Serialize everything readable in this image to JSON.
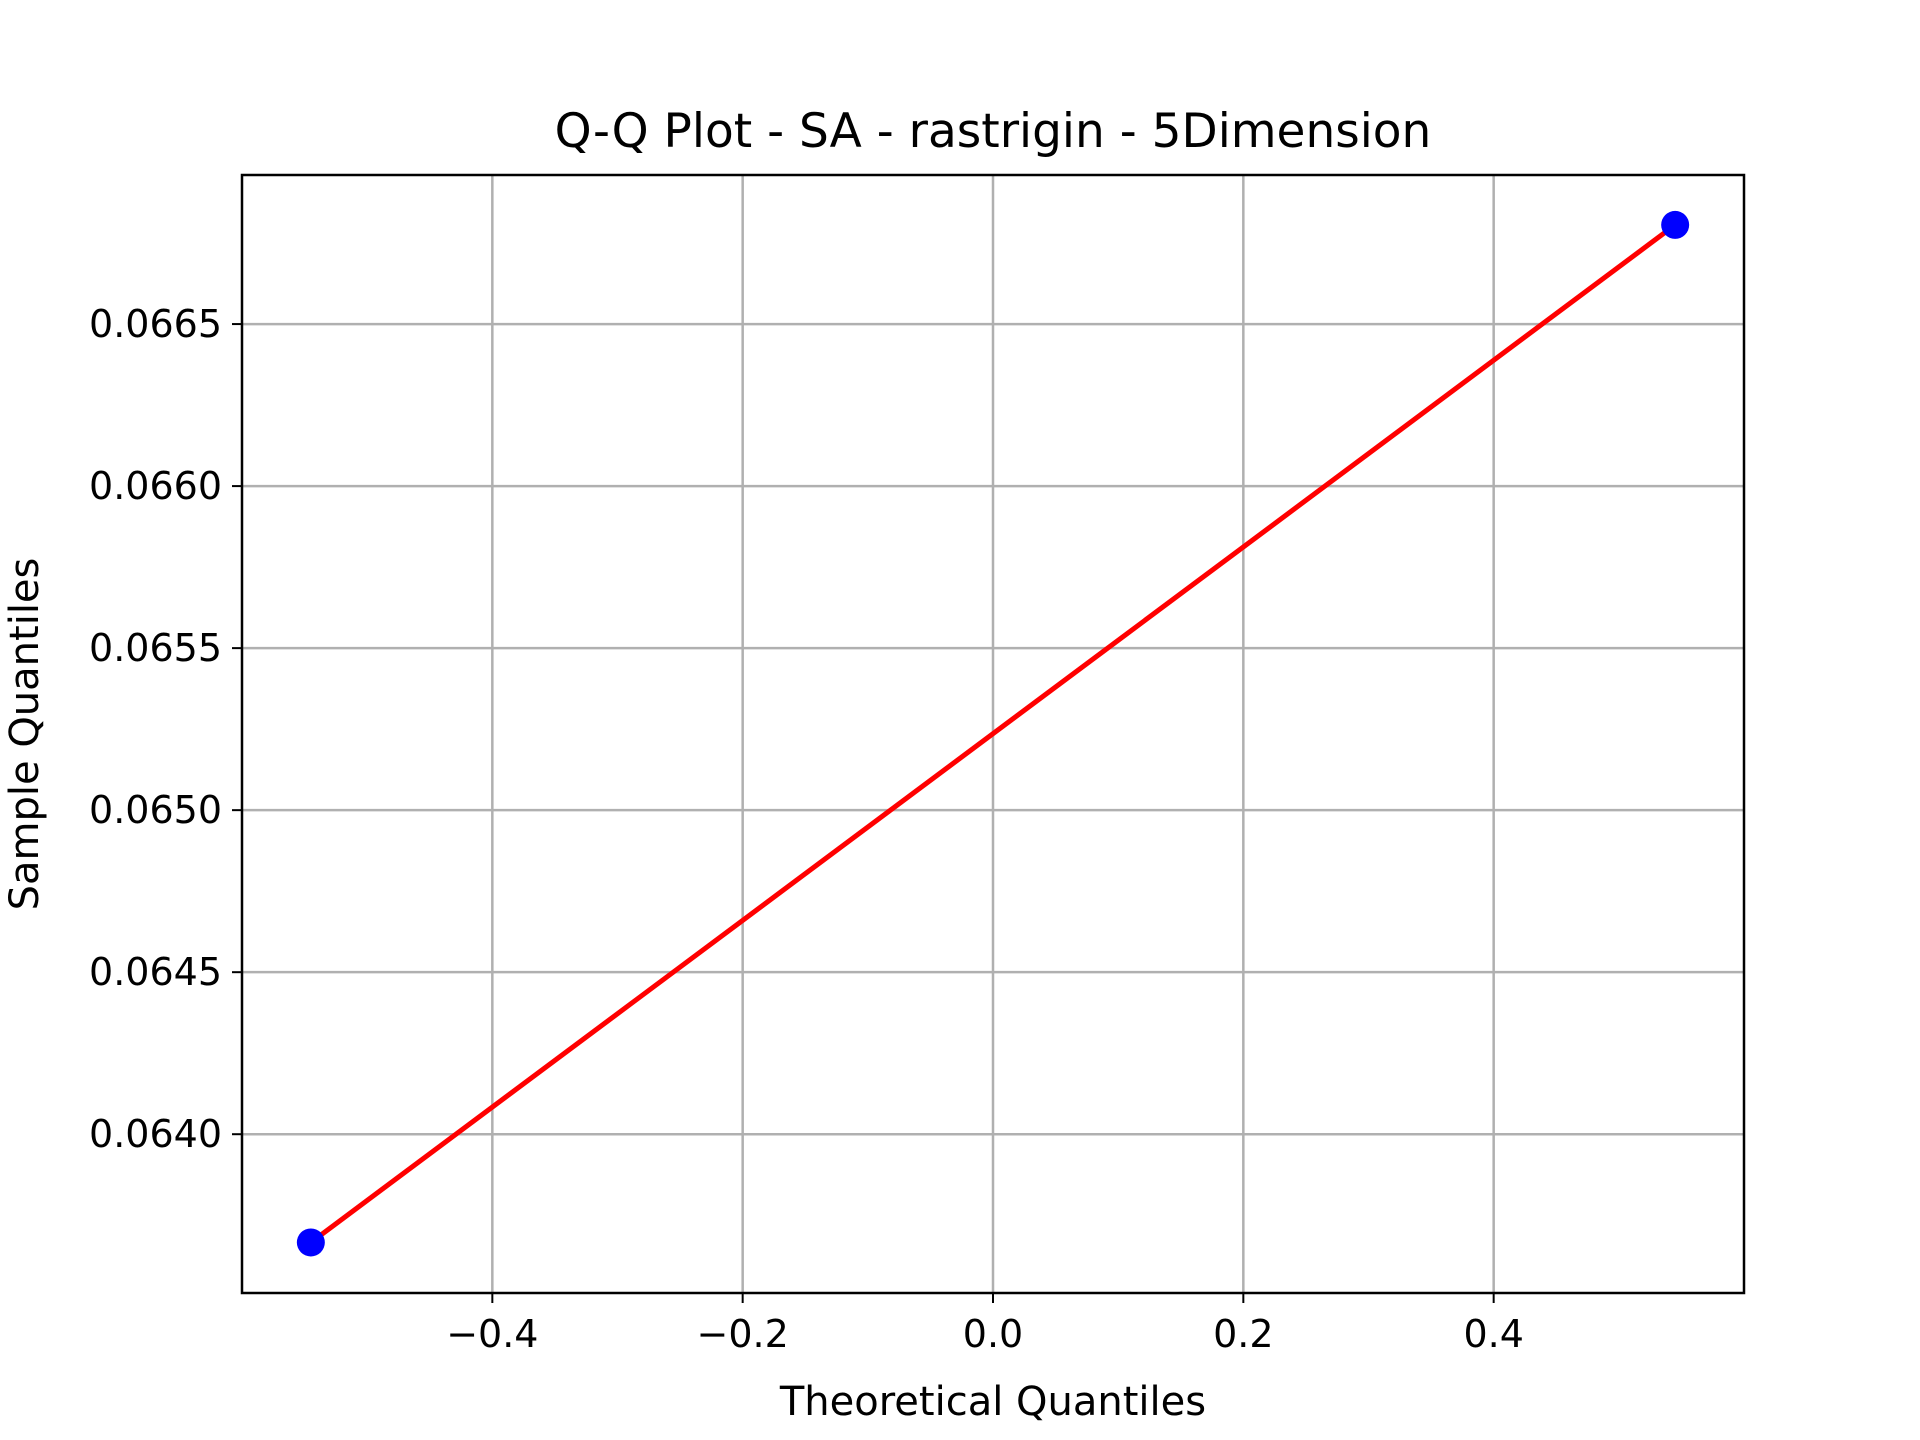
{
  "chart_data": {
    "type": "scatter",
    "title": "Q-Q Plot - SA - rastrigin - 5Dimension",
    "xlabel": "Theoretical Quantiles",
    "ylabel": "Sample Quantiles",
    "xlim": [
      -0.6,
      0.6
    ],
    "ylim": [
      0.06351,
      0.06696
    ],
    "xticks": [
      -0.4,
      -0.2,
      0.0,
      0.2,
      0.4
    ],
    "xtick_labels": [
      "−0.4",
      "−0.2",
      "0.0",
      "0.2",
      "0.4"
    ],
    "yticks": [
      0.064,
      0.0645,
      0.065,
      0.0655,
      0.066,
      0.0665
    ],
    "ytick_labels": [
      "0.0640",
      "0.0645",
      "0.0650",
      "0.0655",
      "0.0660",
      "0.0665"
    ],
    "grid": true,
    "series": [
      {
        "kind": "points",
        "color": "#0000ff",
        "x": [
          -0.545,
          0.545
        ],
        "y": [
          0.063666,
          0.066806
        ]
      },
      {
        "kind": "line",
        "color": "#ff0000",
        "x": [
          -0.545,
          0.545
        ],
        "y": [
          0.063666,
          0.066806
        ]
      }
    ]
  }
}
